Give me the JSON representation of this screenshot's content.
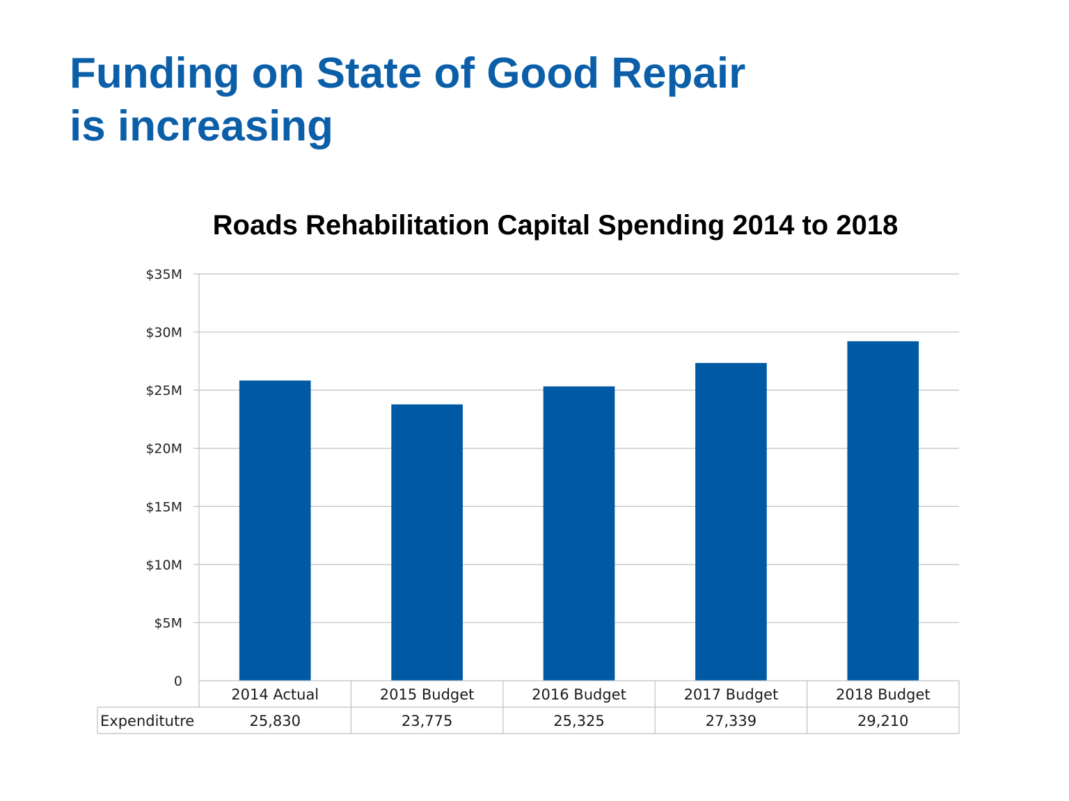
{
  "slide": {
    "title_line1": "Funding on State of Good Repair",
    "title_line2": "is increasing"
  },
  "colors": {
    "title": "#0b5ea8",
    "bar": "#005aa3",
    "grid": "#bfbfbf"
  },
  "chart_data": {
    "type": "bar",
    "title": "Roads Rehabilitation Capital Spending 2014 to 2018",
    "categories": [
      "2014 Actual",
      "2015 Budget",
      "2016 Budget",
      "2017 Budget",
      "2018 Budget"
    ],
    "series": [
      {
        "name": "Expenditutre",
        "values": [
          25830,
          23775,
          25325,
          27339,
          29210
        ],
        "labels": [
          "25,830",
          "23,775",
          "25,325",
          "27,339",
          "29,210"
        ]
      }
    ],
    "ylim": [
      0,
      35000
    ],
    "yticks": [
      0,
      5000,
      10000,
      15000,
      20000,
      25000,
      30000,
      35000
    ],
    "ytick_labels": [
      "0",
      "$5M",
      "$10M",
      "$15M",
      "$20M",
      "$25M",
      "$30M",
      "$35M"
    ],
    "grid": true,
    "data_table": true,
    "xlabel": "",
    "ylabel": ""
  }
}
